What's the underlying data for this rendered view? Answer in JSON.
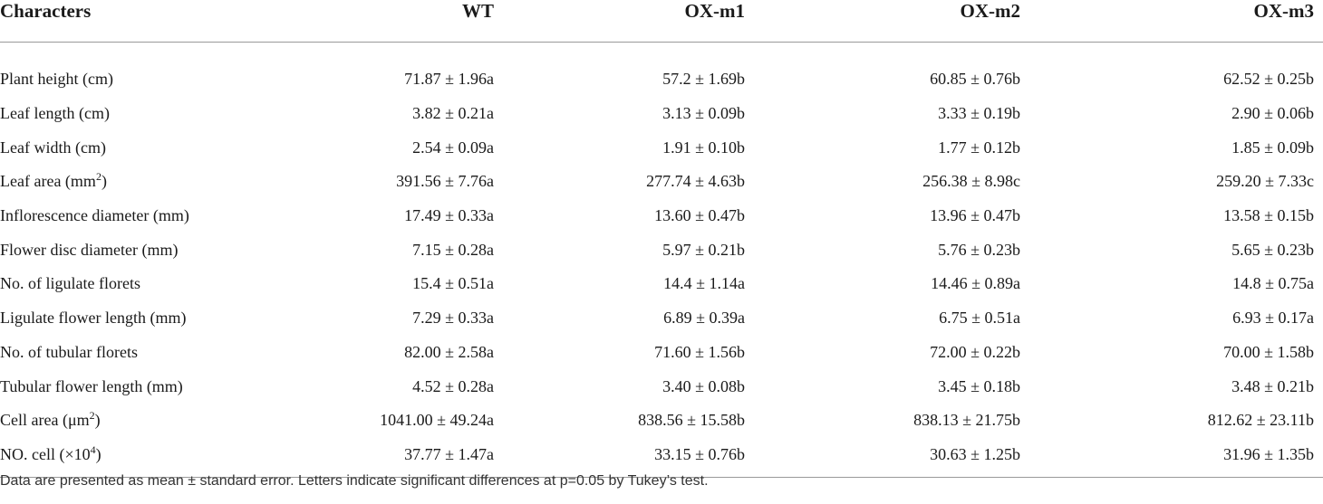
{
  "table": {
    "headers": [
      "Characters",
      "WT",
      "OX-m1",
      "OX-m2",
      "OX-m3"
    ],
    "rows": [
      {
        "char": "Plant height (cm)",
        "sup": "",
        "char_after": "",
        "wt": "71.87 ± 1.96a",
        "m1": "57.2 ± 1.69b",
        "m2": "60.85 ± 0.76b",
        "m3": "62.52 ± 0.25b"
      },
      {
        "char": "Leaf length (cm)",
        "sup": "",
        "char_after": "",
        "wt": "3.82 ± 0.21a",
        "m1": "3.13 ± 0.09b",
        "m2": "3.33 ± 0.19b",
        "m3": "2.90 ± 0.06b"
      },
      {
        "char": "Leaf width (cm)",
        "sup": "",
        "char_after": "",
        "wt": "2.54 ± 0.09a",
        "m1": "1.91 ± 0.10b",
        "m2": "1.77 ± 0.12b",
        "m3": "1.85 ± 0.09b"
      },
      {
        "char": "Leaf area (mm",
        "sup": "2",
        "char_after": ")",
        "wt": "391.56 ± 7.76a",
        "m1": "277.74 ± 4.63b",
        "m2": "256.38 ± 8.98c",
        "m3": "259.20 ± 7.33c"
      },
      {
        "char": "Inflorescence diameter (mm)",
        "sup": "",
        "char_after": "",
        "wt": "17.49 ± 0.33a",
        "m1": "13.60 ± 0.47b",
        "m2": "13.96 ± 0.47b",
        "m3": "13.58 ± 0.15b"
      },
      {
        "char": "Flower disc diameter (mm)",
        "sup": "",
        "char_after": "",
        "wt": "7.15 ± 0.28a",
        "m1": "5.97 ± 0.21b",
        "m2": "5.76 ± 0.23b",
        "m3": "5.65 ± 0.23b"
      },
      {
        "char": "No. of ligulate florets",
        "sup": "",
        "char_after": "",
        "wt": "15.4 ± 0.51a",
        "m1": "14.4 ± 1.14a",
        "m2": "14.46 ± 0.89a",
        "m3": "14.8 ± 0.75a"
      },
      {
        "char": "Ligulate flower length (mm)",
        "sup": "",
        "char_after": "",
        "wt": "7.29 ± 0.33a",
        "m1": "6.89 ± 0.39a",
        "m2": "6.75 ± 0.51a",
        "m3": "6.93 ± 0.17a"
      },
      {
        "char": "No. of tubular florets",
        "sup": "",
        "char_after": "",
        "wt": "82.00 ± 2.58a",
        "m1": "71.60 ± 1.56b",
        "m2": "72.00 ± 0.22b",
        "m3": "70.00 ± 1.58b"
      },
      {
        "char": "Tubular flower length (mm)",
        "sup": "",
        "char_after": "",
        "wt": "4.52 ± 0.28a",
        "m1": "3.40 ± 0.08b",
        "m2": "3.45 ± 0.18b",
        "m3": "3.48 ± 0.21b"
      },
      {
        "char": "Cell area (μm",
        "sup": "2",
        "char_after": ")",
        "wt": "1041.00 ± 49.24a",
        "m1": "838.56 ± 15.58b",
        "m2": "838.13 ± 21.75b",
        "m3": "812.62 ± 23.11b"
      },
      {
        "char": "NO. cell (×10",
        "sup": "4",
        "char_after": ")",
        "wt": "37.77 ± 1.47a",
        "m1": "33.15 ± 0.76b",
        "m2": "30.63 ± 1.25b",
        "m3": "31.96 ± 1.35b"
      }
    ]
  },
  "footnote": "Data are presented as mean ± standard error. Letters indicate significant differences at p=0.05 by Tukey’s test."
}
